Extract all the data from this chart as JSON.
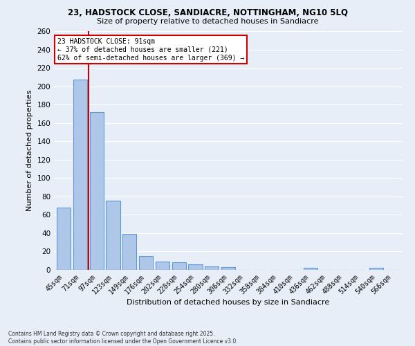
{
  "title_line1": "23, HADSTOCK CLOSE, SANDIACRE, NOTTINGHAM, NG10 5LQ",
  "title_line2": "Size of property relative to detached houses in Sandiacre",
  "xlabel": "Distribution of detached houses by size in Sandiacre",
  "ylabel": "Number of detached properties",
  "categories": [
    "45sqm",
    "71sqm",
    "97sqm",
    "123sqm",
    "149sqm",
    "176sqm",
    "202sqm",
    "228sqm",
    "254sqm",
    "280sqm",
    "306sqm",
    "332sqm",
    "358sqm",
    "384sqm",
    "410sqm",
    "436sqm",
    "462sqm",
    "488sqm",
    "514sqm",
    "540sqm",
    "566sqm"
  ],
  "values": [
    68,
    207,
    172,
    75,
    39,
    15,
    9,
    8,
    6,
    4,
    3,
    0,
    0,
    0,
    0,
    2,
    0,
    0,
    0,
    2,
    0
  ],
  "bar_color": "#aec6e8",
  "bar_edge_color": "#5b9bd5",
  "bg_color": "#e8eef7",
  "grid_color": "#ffffff",
  "annotation_title": "23 HADSTOCK CLOSE: 91sqm",
  "annotation_line2": "← 37% of detached houses are smaller (221)",
  "annotation_line3": "62% of semi-detached houses are larger (369) →",
  "annotation_box_color": "#ffffff",
  "annotation_box_edge": "#cc0000",
  "redline_color": "#cc0000",
  "ylim": [
    0,
    260
  ],
  "yticks": [
    0,
    20,
    40,
    60,
    80,
    100,
    120,
    140,
    160,
    180,
    200,
    220,
    240,
    260
  ],
  "footer_line1": "Contains HM Land Registry data © Crown copyright and database right 2025.",
  "footer_line2": "Contains public sector information licensed under the Open Government Licence v3.0."
}
